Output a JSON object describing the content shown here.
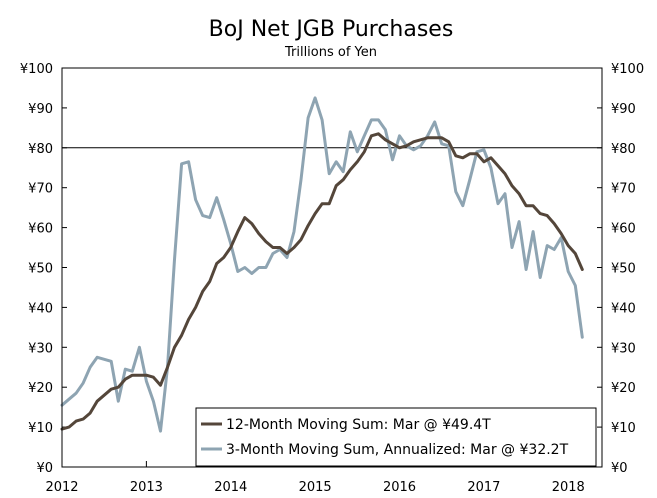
{
  "chart_data": {
    "type": "line",
    "title": "BoJ Net JGB Purchases",
    "subtitle": "Trillions of Yen",
    "xlabel": "",
    "ylabel": "",
    "xlim": [
      2012,
      2018.4
    ],
    "ylim": [
      0,
      100
    ],
    "x_ticks": [
      "2012",
      "2013",
      "2014",
      "2015",
      "2016",
      "2017",
      "2018"
    ],
    "y_ticks": [
      "¥0",
      "¥10",
      "¥20",
      "¥30",
      "¥40",
      "¥50",
      "¥60",
      "¥70",
      "¥80",
      "¥90",
      "¥100"
    ],
    "y_tick_values": [
      0,
      10,
      20,
      30,
      40,
      50,
      60,
      70,
      80,
      90,
      100
    ],
    "reference_line": 80,
    "grid": false,
    "legend_position": "bottom-right",
    "series": [
      {
        "name": "12-Month Moving Sum: Mar @ ¥49.4T",
        "color": "#54463a",
        "x": [
          2012.0,
          2012.083,
          2012.167,
          2012.25,
          2012.333,
          2012.417,
          2012.5,
          2012.583,
          2012.667,
          2012.75,
          2012.833,
          2012.917,
          2013.0,
          2013.083,
          2013.167,
          2013.25,
          2013.333,
          2013.417,
          2013.5,
          2013.583,
          2013.667,
          2013.75,
          2013.833,
          2013.917,
          2014.0,
          2014.083,
          2014.167,
          2014.25,
          2014.333,
          2014.417,
          2014.5,
          2014.583,
          2014.667,
          2014.75,
          2014.833,
          2014.917,
          2015.0,
          2015.083,
          2015.167,
          2015.25,
          2015.333,
          2015.417,
          2015.5,
          2015.583,
          2015.667,
          2015.75,
          2015.833,
          2015.917,
          2016.0,
          2016.083,
          2016.167,
          2016.25,
          2016.333,
          2016.417,
          2016.5,
          2016.583,
          2016.667,
          2016.75,
          2016.833,
          2016.917,
          2017.0,
          2017.083,
          2017.167,
          2017.25,
          2017.333,
          2017.417,
          2017.5,
          2017.583,
          2017.667,
          2017.75,
          2017.833,
          2017.917,
          2018.0,
          2018.083,
          2018.167
        ],
        "values": [
          9.5,
          10,
          11.5,
          12,
          13.5,
          16.5,
          18,
          19.5,
          20,
          22,
          23,
          23,
          23,
          22.5,
          20.5,
          25,
          30,
          33,
          37,
          40,
          44,
          46.5,
          51,
          52.5,
          55,
          59,
          62.5,
          61,
          58.5,
          56.5,
          55,
          55,
          53.5,
          55,
          57,
          60.5,
          63.5,
          66,
          66,
          70.5,
          72,
          74.5,
          76.5,
          79,
          83,
          83.5,
          82,
          81,
          80,
          80.5,
          81.5,
          82,
          82.5,
          82.5,
          82.5,
          81.5,
          78,
          77.5,
          78.5,
          78.5,
          76.5,
          77.5,
          75.5,
          73.5,
          70.5,
          68.5,
          65.5,
          65.5,
          63.5,
          63,
          61,
          58.5,
          55.5,
          53.5,
          49.5
        ]
      },
      {
        "name": "3-Month Moving Sum, Annualized: Mar @ ¥32.2T",
        "color": "#8ea4b2",
        "x": [
          2012.0,
          2012.083,
          2012.167,
          2012.25,
          2012.333,
          2012.417,
          2012.5,
          2012.583,
          2012.667,
          2012.75,
          2012.833,
          2012.917,
          2013.0,
          2013.083,
          2013.167,
          2013.25,
          2013.333,
          2013.417,
          2013.5,
          2013.583,
          2013.667,
          2013.75,
          2013.833,
          2013.917,
          2014.0,
          2014.083,
          2014.167,
          2014.25,
          2014.333,
          2014.417,
          2014.5,
          2014.583,
          2014.667,
          2014.75,
          2014.833,
          2014.917,
          2015.0,
          2015.083,
          2015.167,
          2015.25,
          2015.333,
          2015.417,
          2015.5,
          2015.583,
          2015.667,
          2015.75,
          2015.833,
          2015.917,
          2016.0,
          2016.083,
          2016.167,
          2016.25,
          2016.333,
          2016.417,
          2016.5,
          2016.583,
          2016.667,
          2016.75,
          2016.833,
          2016.917,
          2017.0,
          2017.083,
          2017.167,
          2017.25,
          2017.333,
          2017.417,
          2017.5,
          2017.583,
          2017.667,
          2017.75,
          2017.833,
          2017.917,
          2018.0,
          2018.083,
          2018.167
        ],
        "values": [
          15.5,
          17,
          18.5,
          21,
          25,
          27.5,
          27,
          26.5,
          16.5,
          24.5,
          24,
          30,
          21.5,
          16.5,
          9,
          25,
          52,
          76,
          76.5,
          67,
          63,
          62.5,
          67.5,
          62,
          56,
          49,
          50,
          48.5,
          50,
          50,
          53.5,
          54.5,
          52.5,
          59,
          72,
          87.5,
          92.5,
          87,
          73.5,
          76.5,
          74,
          84,
          79,
          83,
          87,
          87,
          84.5,
          77,
          83,
          80.5,
          79.5,
          80.5,
          83,
          86.5,
          81,
          80.5,
          69,
          65.5,
          72,
          79,
          79.5,
          75,
          66,
          68.5,
          55,
          61.5,
          49.5,
          59,
          47.5,
          55.5,
          54.5,
          57.5,
          49,
          45.5,
          32.5
        ]
      }
    ]
  }
}
